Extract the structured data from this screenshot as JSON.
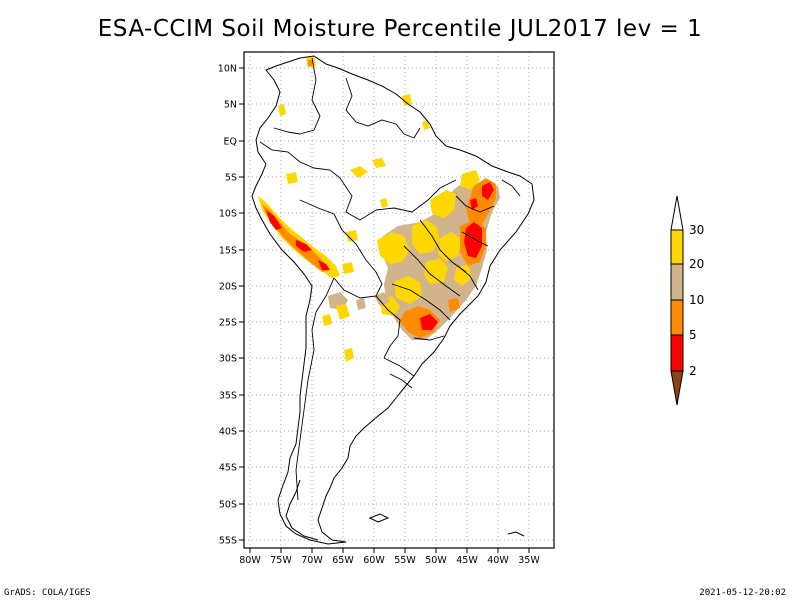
{
  "title": "ESA-CCIM Soil Moisture Percentile JUL2017 lev = 1",
  "map": {
    "lat_ticks": [
      "10N",
      "5N",
      "EQ",
      "5S",
      "10S",
      "15S",
      "20S",
      "25S",
      "30S",
      "35S",
      "40S",
      "45S",
      "50S",
      "55S"
    ],
    "lon_ticks": [
      "80W",
      "75W",
      "70W",
      "65W",
      "60W",
      "55W",
      "50W",
      "45W",
      "40W",
      "35W"
    ],
    "region": "South America",
    "grid": "dotted"
  },
  "legend": {
    "labels": [
      "2",
      "5",
      "10",
      "20",
      "30"
    ],
    "colors": {
      "below_2": "#8b4513",
      "2_to_5": "#ff0000",
      "5_to_10": "#ff8c00",
      "10_to_20": "#d2b48c",
      "20_to_30": "#ffd700",
      "above_30": "#ffffff"
    }
  },
  "footer": {
    "left": "GrADS: COLA/IGES",
    "right": "2021-05-12-20:02"
  }
}
